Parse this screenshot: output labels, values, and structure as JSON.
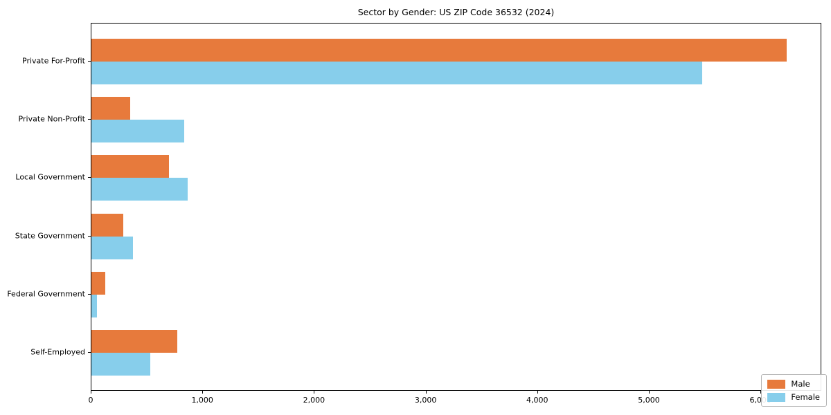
{
  "chart_data": {
    "type": "bar",
    "orientation": "horizontal",
    "title": "Sector by Gender: US ZIP Code 36532 (2024)",
    "categories": [
      "Private For-Profit",
      "Private Non-Profit",
      "Local Government",
      "State Government",
      "Federal Government",
      "Self-Employed"
    ],
    "series": [
      {
        "name": "Male",
        "color": "#E77A3C",
        "values": [
          6230,
          350,
          695,
          285,
          125,
          770
        ]
      },
      {
        "name": "Female",
        "color": "#87CEEB",
        "values": [
          5470,
          830,
          865,
          370,
          47,
          530
        ]
      }
    ],
    "xlabel": "",
    "ylabel": "",
    "xlim": [
      0,
      6545
    ],
    "xticks": [
      0,
      1000,
      2000,
      3000,
      4000,
      5000,
      6000
    ],
    "xtick_labels": [
      "0",
      "1,000",
      "2,000",
      "3,000",
      "4,000",
      "5,000",
      "6,000"
    ],
    "grid": false,
    "legend_position": "lower right",
    "spine_color": "#000000",
    "background_color": "#ffffff"
  }
}
